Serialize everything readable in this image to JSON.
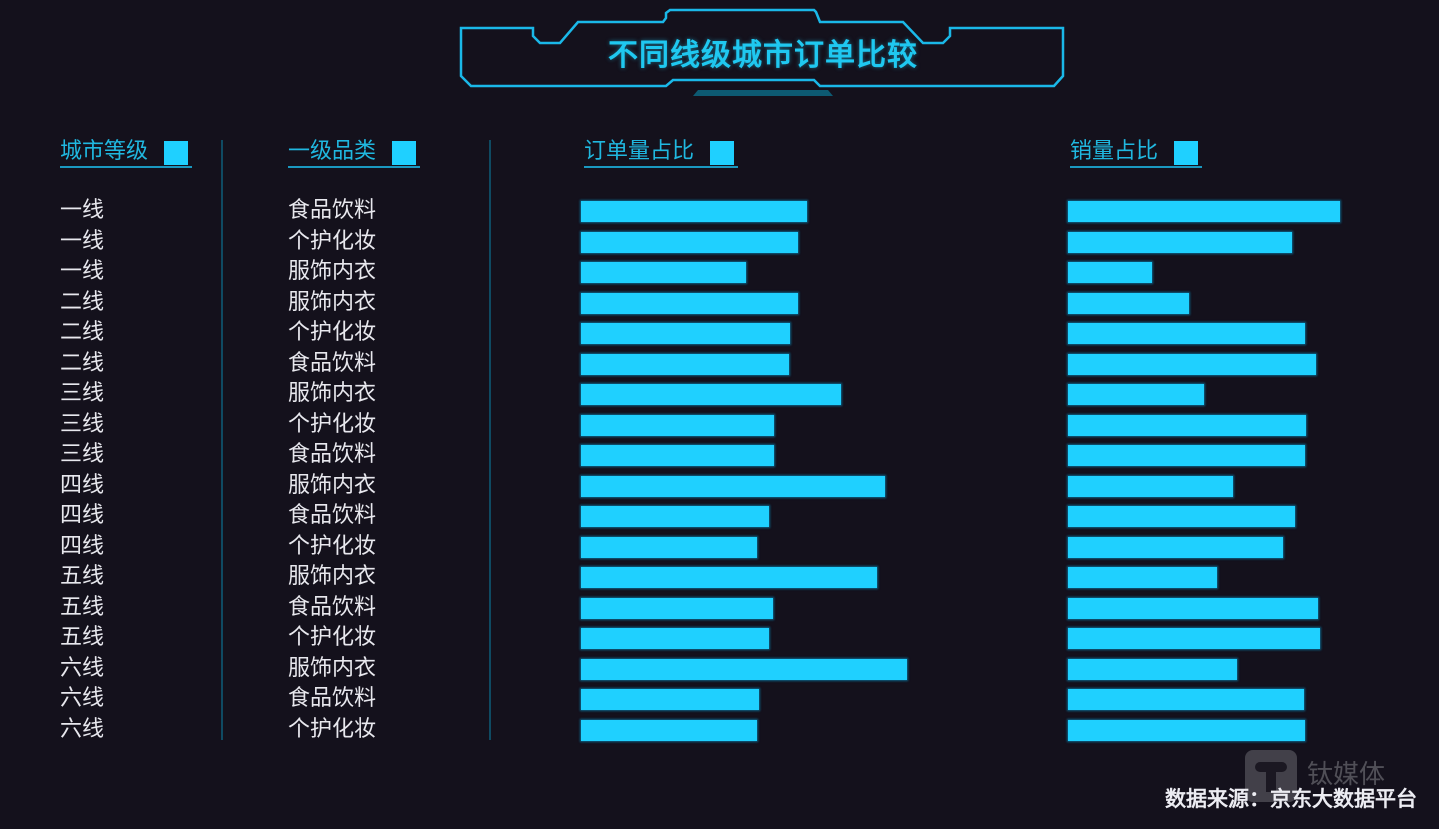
{
  "title": "不同线级城市订单比较",
  "columns": {
    "city_tier": "城市等级",
    "category": "一级品类",
    "order_share": "订单量占比",
    "sales_share": "销量占比"
  },
  "rows": [
    {
      "tier": "一线",
      "category": "食品饮料"
    },
    {
      "tier": "一线",
      "category": "个护化妆"
    },
    {
      "tier": "一线",
      "category": "服饰内衣"
    },
    {
      "tier": "二线",
      "category": "服饰内衣"
    },
    {
      "tier": "二线",
      "category": "个护化妆"
    },
    {
      "tier": "二线",
      "category": "食品饮料"
    },
    {
      "tier": "三线",
      "category": "服饰内衣"
    },
    {
      "tier": "三线",
      "category": "个护化妆"
    },
    {
      "tier": "三线",
      "category": "食品饮料"
    },
    {
      "tier": "四线",
      "category": "服饰内衣"
    },
    {
      "tier": "四线",
      "category": "食品饮料"
    },
    {
      "tier": "四线",
      "category": "个护化妆"
    },
    {
      "tier": "五线",
      "category": "服饰内衣"
    },
    {
      "tier": "五线",
      "category": "食品饮料"
    },
    {
      "tier": "五线",
      "category": "个护化妆"
    },
    {
      "tier": "六线",
      "category": "服饰内衣"
    },
    {
      "tier": "六线",
      "category": "食品饮料"
    },
    {
      "tier": "六线",
      "category": "个护化妆"
    }
  ],
  "source": "数据来源：京东大数据平台",
  "watermark": "钛媒体",
  "colors": {
    "background": "#14111c",
    "bar": "#1fd0ff",
    "header": "#20b8e0",
    "frame": "#1ab8e8",
    "text": "#e8e8ee"
  },
  "chart_data": {
    "type": "bar",
    "orientation": "horizontal",
    "title": "不同线级城市订单比较",
    "categories": [
      "一线 食品饮料",
      "一线 个护化妆",
      "一线 服饰内衣",
      "二线 服饰内衣",
      "二线 个护化妆",
      "二线 食品饮料",
      "三线 服饰内衣",
      "三线 个护化妆",
      "三线 食品饮料",
      "四线 服饰内衣",
      "四线 食品饮料",
      "四线 个护化妆",
      "五线 服饰内衣",
      "五线 食品饮料",
      "五线 个护化妆",
      "六线 服饰内衣",
      "六线 食品饮料",
      "六线 个护化妆"
    ],
    "series": [
      {
        "name": "订单量占比",
        "unit": "relative (bar px width)",
        "values": [
          226,
          217,
          165,
          217,
          209,
          208,
          260,
          193,
          193,
          304,
          188,
          176,
          296,
          192,
          188,
          326,
          178,
          176
        ]
      },
      {
        "name": "销量占比",
        "unit": "relative (bar px width)",
        "values": [
          272,
          224,
          84,
          121,
          237,
          248,
          136,
          238,
          237,
          165,
          227,
          215,
          149,
          250,
          252,
          169,
          236,
          237
        ]
      }
    ],
    "xlabel": "",
    "ylabel": "",
    "grid": false,
    "legend": "column headers with square swatches",
    "note": "No axis ticks or value labels shown; values are relative bar lengths estimated in pixels"
  }
}
